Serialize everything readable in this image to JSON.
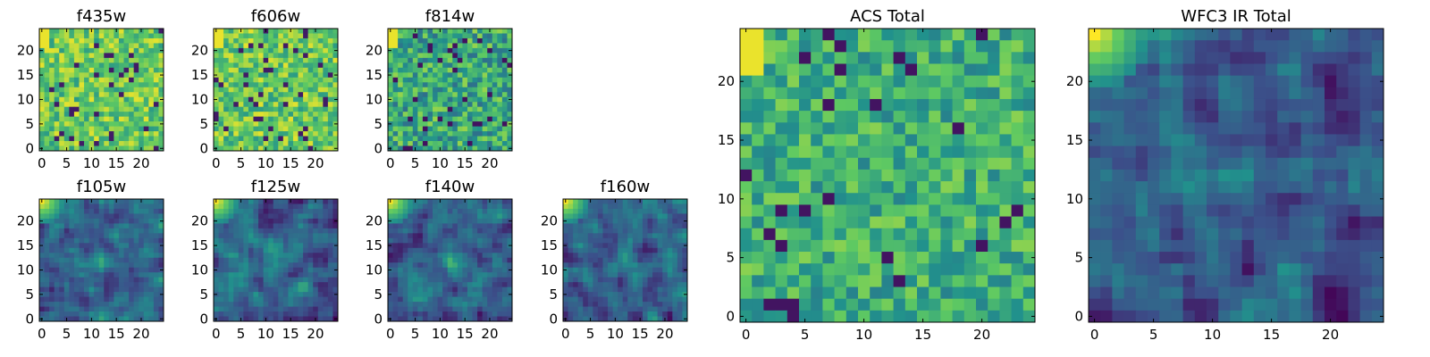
{
  "chart_data": [
    {
      "type": "heatmap",
      "title": "f435w",
      "size": 25,
      "ticks": [
        0,
        5,
        10,
        15,
        20
      ],
      "style": "acs",
      "seed": 11
    },
    {
      "type": "heatmap",
      "title": "f606w",
      "size": 25,
      "ticks": [
        0,
        5,
        10,
        15,
        20
      ],
      "style": "acs",
      "seed": 23
    },
    {
      "type": "heatmap",
      "title": "f814w",
      "size": 25,
      "ticks": [
        0,
        5,
        10,
        15,
        20
      ],
      "style": "acs_dim",
      "seed": 37
    },
    {
      "type": "heatmap",
      "title": "f105w",
      "size": 25,
      "ticks": [
        0,
        5,
        10,
        15,
        20
      ],
      "style": "ir",
      "seed": 41
    },
    {
      "type": "heatmap",
      "title": "f125w",
      "size": 25,
      "ticks": [
        0,
        5,
        10,
        15,
        20
      ],
      "style": "ir",
      "seed": 53
    },
    {
      "type": "heatmap",
      "title": "f140w",
      "size": 25,
      "ticks": [
        0,
        5,
        10,
        15,
        20
      ],
      "style": "ir",
      "seed": 67
    },
    {
      "type": "heatmap",
      "title": "f160w",
      "size": 25,
      "ticks": [
        0,
        5,
        10,
        15,
        20
      ],
      "style": "ir",
      "seed": 79
    },
    {
      "type": "heatmap",
      "title": "ACS Total",
      "size": 25,
      "ticks": [
        0,
        5,
        10,
        15,
        20
      ],
      "style": "acs_total",
      "seed": 97
    },
    {
      "type": "heatmap",
      "title": "WFC3 IR Total",
      "size": 25,
      "ticks": [
        0,
        5,
        10,
        15,
        20
      ],
      "style": "ir_total",
      "seed": 131
    }
  ],
  "colormap": [
    "#440154",
    "#3b528b",
    "#21918c",
    "#5ec962",
    "#fde725"
  ]
}
